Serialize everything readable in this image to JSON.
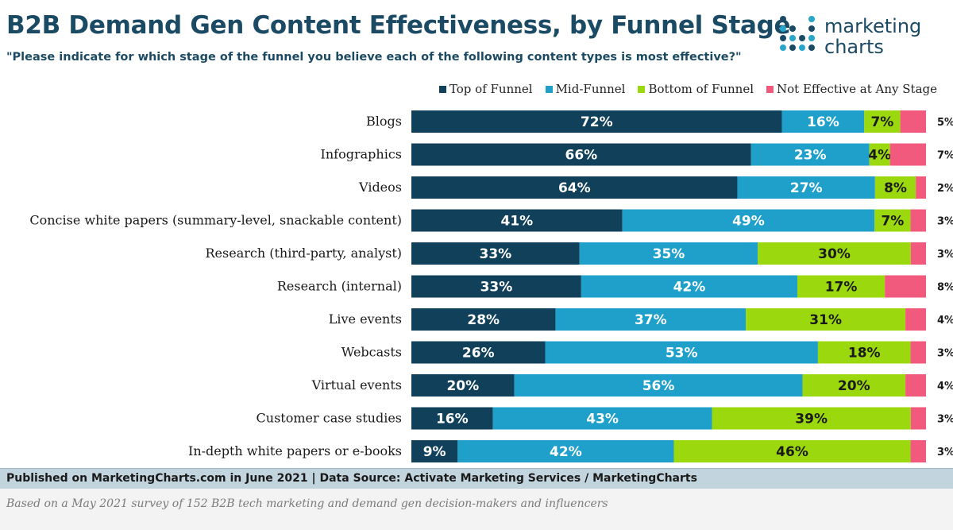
{
  "header": {
    "title": "B2B Demand Gen Content Effectiveness, by Funnel Stage",
    "subtitle": "\"Please indicate for which stage of the funnel you believe each of the following content types is most effective?\""
  },
  "logo": {
    "line1": "marketing",
    "line2": "charts"
  },
  "footer": {
    "published": "Published on MarketingCharts.com in June 2021 | Data Source: Activate Marketing Services / MarketingCharts",
    "note": "Based on a May 2021 survey of 152 B2B tech marketing and demand gen decision-makers and influencers"
  },
  "chart_data": {
    "type": "bar",
    "orientation": "horizontal",
    "stacked": true,
    "unit": "%",
    "categories": [
      "Blogs",
      "Infographics",
      "Videos",
      "Concise white papers (summary-level, snackable content)",
      "Research (third-party, analyst)",
      "Research (internal)",
      "Live events",
      "Webcasts",
      "Virtual events",
      "Customer case studies",
      "In-depth white papers or e-books"
    ],
    "series": [
      {
        "name": "Top of Funnel",
        "color": "#10405a",
        "label_color": "#ffffff",
        "values": [
          72,
          66,
          64,
          41,
          33,
          33,
          28,
          26,
          20,
          16,
          9
        ]
      },
      {
        "name": "Mid-Funnel",
        "color": "#1ea0ca",
        "label_color": "#ffffff",
        "values": [
          16,
          23,
          27,
          49,
          35,
          42,
          37,
          53,
          56,
          43,
          42
        ]
      },
      {
        "name": "Bottom of Funnel",
        "color": "#9bd80e",
        "label_color": "#1a1a1a",
        "values": [
          7,
          4,
          8,
          7,
          30,
          17,
          31,
          18,
          20,
          39,
          46
        ]
      },
      {
        "name": "Not Effective at Any Stage",
        "color": "#f25a7d",
        "label_color": "#1a1a1a",
        "values": [
          5,
          7,
          2,
          3,
          3,
          8,
          4,
          3,
          4,
          3,
          3
        ]
      }
    ],
    "legend_position": "top-right",
    "grid": false
  }
}
